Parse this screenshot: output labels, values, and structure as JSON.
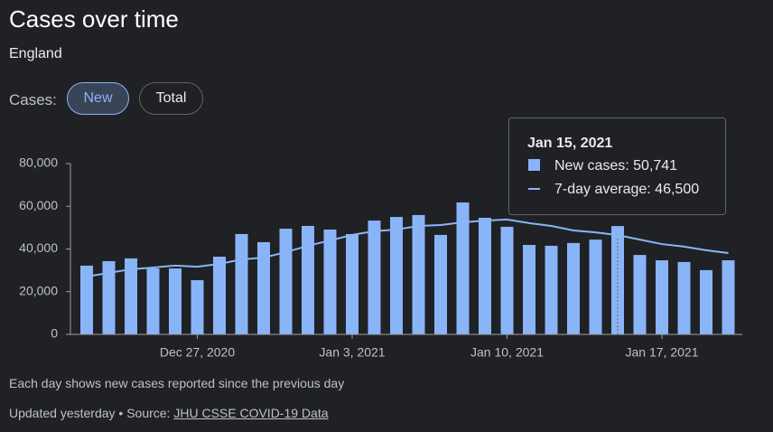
{
  "header": {
    "title": "Cases over time",
    "subtitle": "England",
    "toggle_label": "Cases:",
    "toggles": [
      "New",
      "Total"
    ]
  },
  "chart_data": {
    "type": "bar",
    "categories": [
      null,
      null,
      null,
      null,
      null,
      "Dec 27, 2020",
      null,
      null,
      null,
      null,
      null,
      null,
      "Jan 3, 2021",
      null,
      null,
      null,
      null,
      null,
      null,
      "Jan 10, 2021",
      null,
      null,
      null,
      null,
      null,
      null,
      "Jan 17, 2021",
      null,
      null,
      null
    ],
    "series": [
      {
        "type": "bar",
        "color": "#8ab4f8",
        "values": [
          32200,
          34300,
          35600,
          30900,
          30900,
          25400,
          36400,
          47000,
          43200,
          49500,
          50800,
          49100,
          47000,
          53300,
          55000,
          55900,
          46600,
          61800,
          54600,
          50400,
          41900,
          41500,
          42800,
          44400,
          50741,
          37200,
          34700,
          33900,
          30100,
          34700
        ]
      },
      {
        "type": "line",
        "color": "#8ab4f8",
        "values": [
          27100,
          28800,
          30500,
          31300,
          32200,
          31700,
          33000,
          35100,
          36000,
          38500,
          41500,
          44000,
          46600,
          48300,
          49100,
          50800,
          51200,
          52500,
          53300,
          53800,
          52100,
          50800,
          48700,
          47800,
          46500,
          44400,
          42300,
          41100,
          39400,
          38100
        ]
      }
    ],
    "ylim": [
      0,
      80000
    ],
    "yticks": [
      0,
      {
        "value": 20000,
        "label": "20,000"
      },
      {
        "value": 40000,
        "label": "40,000"
      },
      {
        "value": 60000,
        "label": "60,000"
      },
      {
        "value": 80000,
        "label": "80,000"
      }
    ],
    "tooltip": {
      "title": "Jan 15, 2021",
      "lines": [
        "New cases: 50,741",
        "7-day average: 46,500"
      ]
    }
  },
  "footer": {
    "note": "Each day shows new cases reported since the previous day",
    "updated": "Updated yesterday • Source: ",
    "link": "JHU CSSE COVID-19 Data"
  }
}
